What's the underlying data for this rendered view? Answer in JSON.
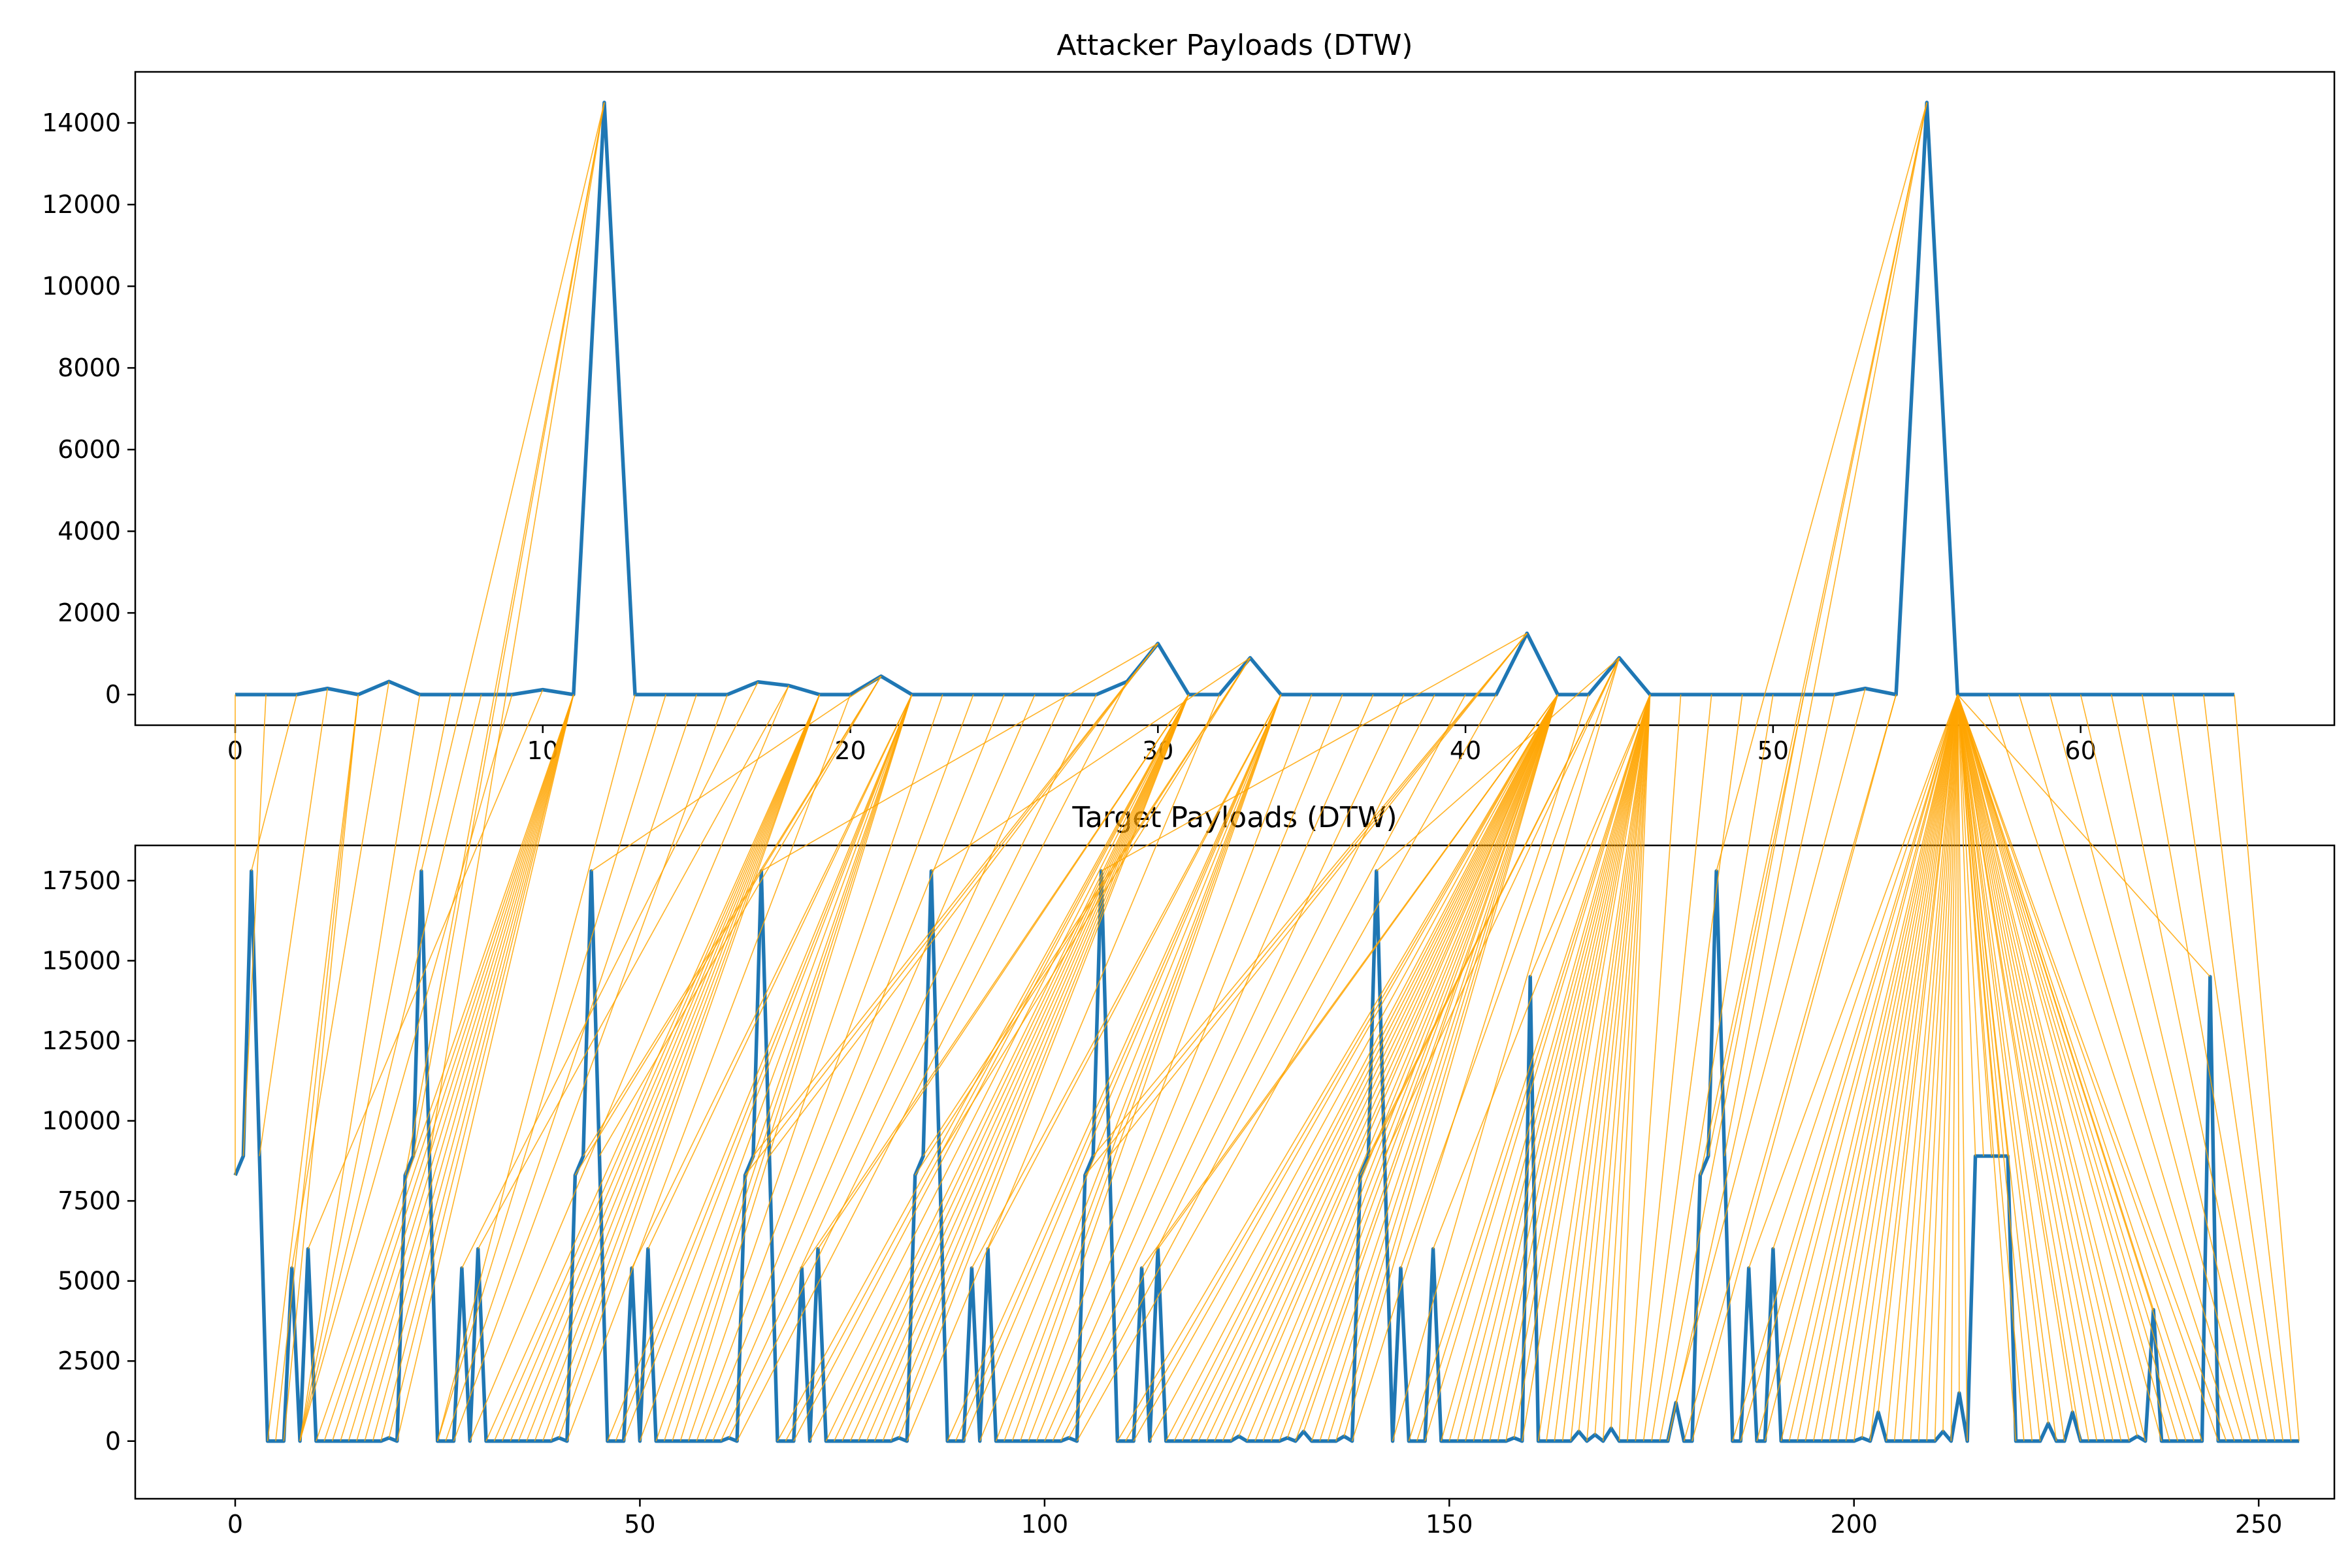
{
  "chart_data": [
    {
      "type": "line",
      "title": "Attacker Payloads (DTW)",
      "xlim": [
        -3.25,
        68.25
      ],
      "ylim": [
        -750,
        15250
      ],
      "xticks": [
        0,
        10,
        20,
        30,
        40,
        50,
        60
      ],
      "yticks": [
        0,
        2000,
        4000,
        6000,
        8000,
        10000,
        12000,
        14000
      ],
      "grid": false,
      "color": "#1f77b4",
      "values": [
        0,
        0,
        0,
        150,
        0,
        320,
        0,
        0,
        0,
        0,
        120,
        0,
        14500,
        0,
        0,
        0,
        0,
        310,
        220,
        0,
        0,
        450,
        0,
        0,
        0,
        0,
        0,
        0,
        0,
        320,
        1250,
        0,
        0,
        900,
        0,
        0,
        0,
        0,
        0,
        0,
        0,
        0,
        1500,
        0,
        0,
        900,
        0,
        0,
        0,
        0,
        0,
        0,
        0,
        150,
        0,
        14500,
        0,
        0,
        0,
        0,
        0,
        0,
        0,
        0,
        0,
        0
      ]
    },
    {
      "type": "line",
      "title": "Target Payloads (DTW)",
      "xlim": [
        -12.35,
        259.35
      ],
      "ylim": [
        -1800,
        18600
      ],
      "xticks": [
        0,
        50,
        100,
        150,
        200,
        250
      ],
      "yticks": [
        0,
        2500,
        5000,
        7500,
        10000,
        12500,
        15000,
        17500
      ],
      "grid": false,
      "color": "#1f77b4",
      "values": [
        8300,
        8900,
        17800,
        8900,
        0,
        0,
        0,
        5400,
        0,
        6000,
        0,
        0,
        0,
        0,
        0,
        0,
        0,
        0,
        0,
        100,
        0,
        8300,
        8900,
        17800,
        8900,
        0,
        0,
        0,
        5400,
        0,
        6000,
        0,
        0,
        0,
        0,
        0,
        0,
        0,
        0,
        0,
        100,
        0,
        8300,
        8900,
        17800,
        8900,
        0,
        0,
        0,
        5400,
        0,
        6000,
        0,
        0,
        0,
        0,
        0,
        0,
        0,
        0,
        0,
        100,
        0,
        8300,
        8900,
        17800,
        8900,
        0,
        0,
        0,
        5400,
        0,
        6000,
        0,
        0,
        0,
        0,
        0,
        0,
        0,
        0,
        0,
        100,
        0,
        8300,
        8900,
        17800,
        8900,
        0,
        0,
        0,
        5400,
        0,
        6000,
        0,
        0,
        0,
        0,
        0,
        0,
        0,
        0,
        0,
        100,
        0,
        8300,
        8900,
        17800,
        8900,
        0,
        0,
        0,
        5400,
        0,
        6000,
        0,
        0,
        0,
        0,
        0,
        0,
        0,
        0,
        0,
        150,
        0,
        0,
        0,
        0,
        0,
        100,
        0,
        300,
        0,
        0,
        0,
        0,
        150,
        0,
        8300,
        8900,
        17800,
        8900,
        0,
        5400,
        0,
        0,
        0,
        6000,
        0,
        0,
        0,
        0,
        0,
        0,
        0,
        0,
        0,
        100,
        0,
        14500,
        0,
        0,
        0,
        0,
        0,
        300,
        0,
        200,
        0,
        400,
        0,
        0,
        0,
        0,
        0,
        0,
        0,
        1200,
        0,
        0,
        8300,
        8900,
        17800,
        8900,
        0,
        0,
        5400,
        0,
        0,
        6000,
        0,
        0,
        0,
        0,
        0,
        0,
        0,
        0,
        0,
        0,
        100,
        0,
        900,
        0,
        0,
        0,
        0,
        0,
        0,
        0,
        300,
        0,
        1500,
        0,
        8900,
        8900,
        8900,
        8900,
        8900,
        0,
        0,
        0,
        0,
        550,
        0,
        0,
        900,
        0,
        0,
        0,
        0,
        0,
        0,
        0,
        150,
        0,
        4100,
        0,
        0,
        0,
        0,
        0,
        0,
        14500,
        0,
        0,
        0,
        0,
        0,
        0,
        0,
        0,
        0,
        0,
        0
      ]
    }
  ],
  "colors": {
    "line": "#1f77b4",
    "warp": "#ffa500"
  }
}
